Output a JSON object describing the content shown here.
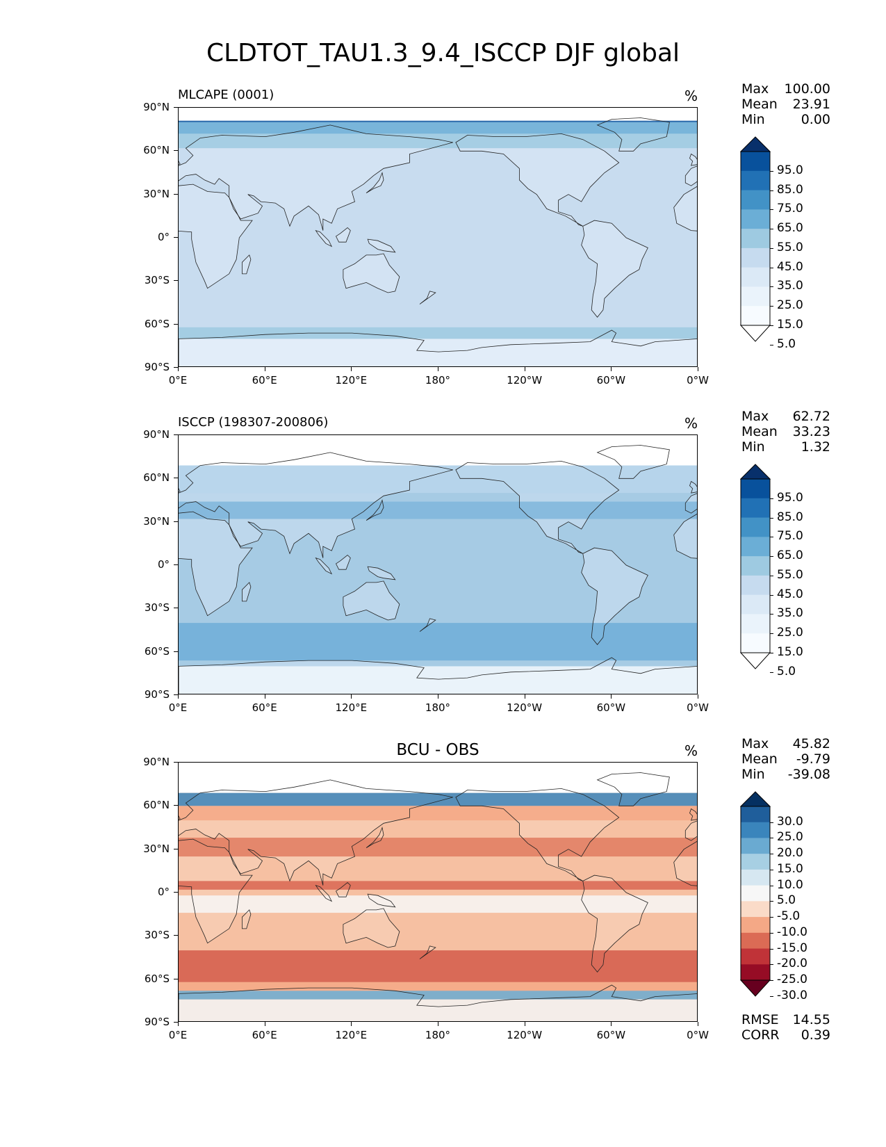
{
  "title": "CLDTOT_TAU1.3_9.4_ISCCP DJF global",
  "x_ticks": [
    "0°E",
    "60°E",
    "120°E",
    "180°",
    "120°W",
    "60°W",
    "0°W"
  ],
  "y_ticks": [
    "90°N",
    "60°N",
    "30°N",
    "0°",
    "30°S",
    "60°S",
    "90°S"
  ],
  "panels": [
    {
      "title": "MLCAPE (0001)",
      "unit": "%",
      "stats": {
        "max_label": "Max",
        "max": "100.00",
        "mean_label": "Mean",
        "mean": "23.91",
        "min_label": "Min",
        "min": "0.00"
      },
      "colorbar": {
        "labels": [
          "95.0",
          "85.0",
          "75.0",
          "65.0",
          "55.0",
          "45.0",
          "35.0",
          "25.0",
          "15.0",
          "5.0"
        ],
        "colors": [
          "#08306b",
          "#08519c",
          "#2171b5",
          "#4292c6",
          "#6baed6",
          "#9ecae1",
          "#c6dbef",
          "#dbe9f6",
          "#eaf3fb",
          "#f7fbff",
          "#ffffff"
        ]
      },
      "background": "#c8dcef",
      "land_color": "#ddeaf6",
      "bands": [
        {
          "lat_from": 90,
          "lat_to": 81,
          "color": "#ffffff"
        },
        {
          "lat_from": 81,
          "lat_to": 80,
          "color": "#08519c"
        },
        {
          "lat_from": 80,
          "lat_to": 72,
          "color": "#6baed6"
        },
        {
          "lat_from": 72,
          "lat_to": 62,
          "color": "#9ecae1"
        },
        {
          "lat_from": -62,
          "lat_to": -70,
          "color": "#9ecae1"
        },
        {
          "lat_from": -70,
          "lat_to": -90,
          "color": "#e4eff9"
        }
      ]
    },
    {
      "title": "ISCCP (198307-200806)",
      "unit": "%",
      "stats": {
        "max_label": "Max",
        "max": "62.72",
        "mean_label": "Mean",
        "mean": "33.23",
        "min_label": "Min",
        "min": "1.32"
      },
      "colorbar": {
        "labels": [
          "95.0",
          "85.0",
          "75.0",
          "65.0",
          "55.0",
          "45.0",
          "35.0",
          "25.0",
          "15.0",
          "5.0"
        ],
        "colors": [
          "#08306b",
          "#08519c",
          "#2171b5",
          "#4292c6",
          "#6baed6",
          "#9ecae1",
          "#c6dbef",
          "#dbe9f6",
          "#eaf3fb",
          "#f7fbff",
          "#ffffff"
        ]
      },
      "background": "#a6cbe4",
      "land_color": "#cfe1f2",
      "bands": [
        {
          "lat_from": 90,
          "lat_to": 69,
          "color": "#ffffff"
        },
        {
          "lat_from": 69,
          "lat_to": 50,
          "color": "#b9d6ec"
        },
        {
          "lat_from": 44,
          "lat_to": 32,
          "color": "#7fb6dc"
        },
        {
          "lat_from": -40,
          "lat_to": -66,
          "color": "#6eaed8"
        },
        {
          "lat_from": -70,
          "lat_to": -90,
          "color": "#f2f8fd"
        }
      ]
    },
    {
      "title": "BCU - OBS",
      "unit": "%",
      "stats": {
        "max_label": "Max",
        "max": "45.82",
        "mean_label": "Mean",
        "mean": "-9.79",
        "min_label": "Min",
        "min": "-39.08"
      },
      "colorbar": {
        "labels": [
          "30.0",
          "25.0",
          "20.0",
          "15.0",
          "10.0",
          "5.0",
          "-5.0",
          "-10.0",
          "-15.0",
          "-20.0",
          "-25.0",
          "-30.0"
        ],
        "colors": [
          "#053061",
          "#1f5e9b",
          "#3a85bc",
          "#6aaad1",
          "#a7cfe3",
          "#d6e7f1",
          "#f7f7f7",
          "#fadbc8",
          "#f4a886",
          "#db6b55",
          "#c03338",
          "#960c25",
          "#67001f"
        ]
      },
      "background": "#f6c0a2",
      "land_color": "#f8d4bd",
      "bands": [
        {
          "lat_from": 90,
          "lat_to": 69,
          "color": "#ffffff"
        },
        {
          "lat_from": 69,
          "lat_to": 60,
          "color": "#3a85bc"
        },
        {
          "lat_from": 60,
          "lat_to": 50,
          "color": "#f4a886"
        },
        {
          "lat_from": 38,
          "lat_to": 25,
          "color": "#e07b60"
        },
        {
          "lat_from": 8,
          "lat_to": 2,
          "color": "#d96652"
        },
        {
          "lat_from": -2,
          "lat_to": -14,
          "color": "#f7f7f7"
        },
        {
          "lat_from": -40,
          "lat_to": -62,
          "color": "#d45a4a"
        },
        {
          "lat_from": -62,
          "lat_to": -68,
          "color": "#f4a886"
        },
        {
          "lat_from": -68,
          "lat_to": -74,
          "color": "#6aaad1"
        },
        {
          "lat_from": -74,
          "lat_to": -90,
          "color": "#f3f3f3"
        }
      ],
      "extra": {
        "rmse_label": "RMSE",
        "rmse": "14.55",
        "corr_label": "CORR",
        "corr": "0.39"
      }
    }
  ]
}
